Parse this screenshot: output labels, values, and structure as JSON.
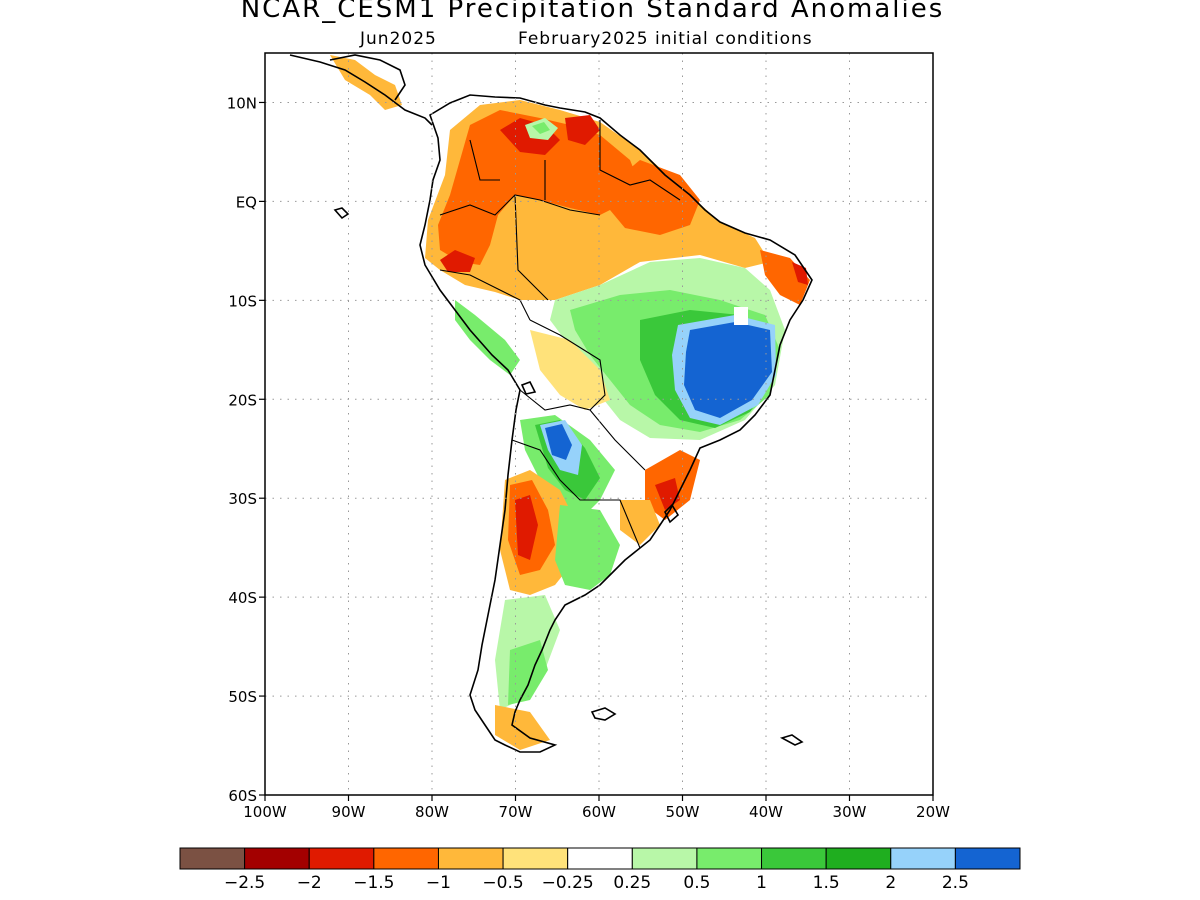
{
  "title": "NCAR_CESM1 Precipitation Standard Anomalies",
  "subtitle_left": "Jun2025",
  "subtitle_right": "February2025 initial conditions",
  "map": {
    "lon_range": [
      -100,
      -20
    ],
    "lat_range": [
      -60,
      15
    ],
    "lat_ticks": [
      {
        "value": 10,
        "label": "10N"
      },
      {
        "value": 0,
        "label": "EQ"
      },
      {
        "value": -10,
        "label": "10S"
      },
      {
        "value": -20,
        "label": "20S"
      },
      {
        "value": -30,
        "label": "30S"
      },
      {
        "value": -40,
        "label": "40S"
      },
      {
        "value": -50,
        "label": "50S"
      },
      {
        "value": -60,
        "label": "60S"
      }
    ],
    "lon_ticks": [
      {
        "value": -100,
        "label": "100W"
      },
      {
        "value": -90,
        "label": "90W"
      },
      {
        "value": -80,
        "label": "80W"
      },
      {
        "value": -70,
        "label": "70W"
      },
      {
        "value": -60,
        "label": "60W"
      },
      {
        "value": -50,
        "label": "50W"
      },
      {
        "value": -40,
        "label": "40W"
      },
      {
        "value": -30,
        "label": "30W"
      },
      {
        "value": -20,
        "label": "20W"
      }
    ],
    "grid": "dotted"
  },
  "colorbar": {
    "colors": [
      "#7b5143",
      "#a30000",
      "#e01a00",
      "#ff6600",
      "#ffb83a",
      "#ffe27a",
      "#ffffff",
      "#b8f7a8",
      "#78ec6c",
      "#3ac83a",
      "#1fae1f",
      "#96d2fa",
      "#1464d2"
    ],
    "labels": [
      "−2.5",
      "−2",
      "−1.5",
      "−1",
      "−0.5",
      "−0.25",
      "0.25",
      "0.5",
      "1",
      "1.5",
      "2",
      "2.5"
    ]
  }
}
